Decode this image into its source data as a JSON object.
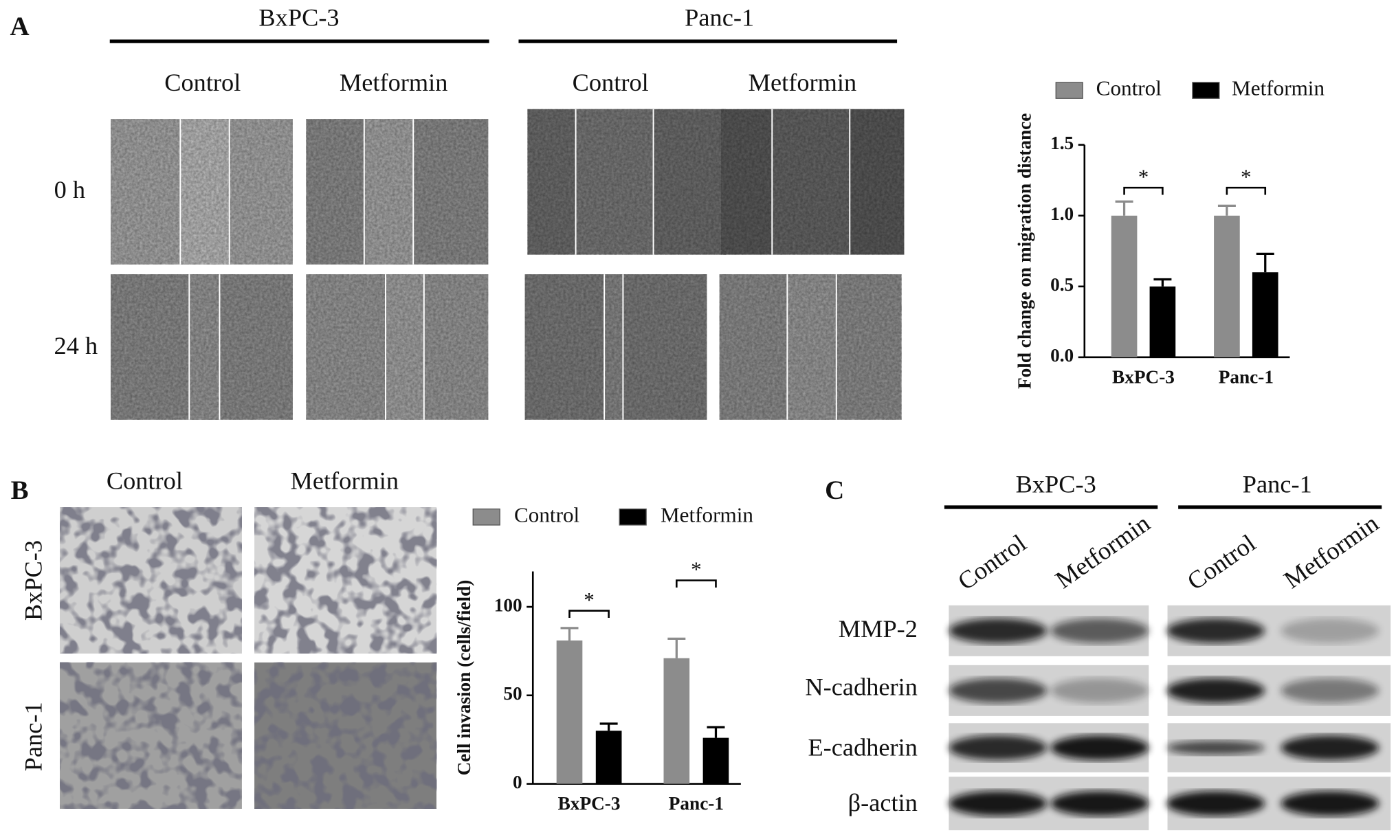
{
  "panels": {
    "A": {
      "label": "A",
      "groups": [
        "BxPC-3",
        "Panc-1"
      ],
      "conditions": [
        "Control",
        "Metformin",
        "Control",
        "Metformin"
      ],
      "times": [
        "0 h",
        "24 h"
      ]
    },
    "B": {
      "label": "B",
      "conditions": [
        "Control",
        "Metformin"
      ],
      "rows": [
        "BxPC-3",
        "Panc-1"
      ]
    },
    "C": {
      "label": "C",
      "groups": [
        "BxPC-3",
        "Panc-1"
      ],
      "lanes": [
        "Control",
        "Metformin",
        "Control",
        "Metformin"
      ],
      "proteins": [
        "MMP-2",
        "N-cadherin",
        "E-cadherin",
        "β-actin"
      ]
    }
  },
  "chart_data": [
    {
      "type": "bar",
      "y_label": "Fold change on migration distance",
      "categories": [
        "BxPC-3",
        "Panc-1"
      ],
      "series": [
        {
          "name": "Control",
          "color": "#8c8c8c",
          "values": [
            1.0,
            1.0
          ],
          "errors": [
            0.1,
            0.07
          ]
        },
        {
          "name": "Metformin",
          "color": "#000000",
          "values": [
            0.5,
            0.6
          ],
          "errors": [
            0.05,
            0.13
          ]
        }
      ],
      "ylim": [
        0,
        1.5
      ],
      "yticks": [
        {
          "value": 0,
          "label": "0.0"
        },
        {
          "value": 0.5,
          "label": "0.5"
        },
        {
          "value": 1,
          "label": "1.0"
        },
        {
          "value": 1.5,
          "label": "1.5"
        }
      ],
      "annotations": [
        "*",
        "*"
      ]
    },
    {
      "type": "bar",
      "y_label": "Cell invasion (cells/field)",
      "categories": [
        "BxPC-3",
        "Panc-1"
      ],
      "series": [
        {
          "name": "Control",
          "color": "#8c8c8c",
          "values": [
            81,
            71
          ],
          "errors": [
            7,
            11
          ]
        },
        {
          "name": "Metformin",
          "color": "#000000",
          "values": [
            30,
            26
          ],
          "errors": [
            4,
            6
          ]
        }
      ],
      "ylim": [
        0,
        120
      ],
      "yticks": [
        0,
        50,
        100
      ],
      "annotations": [
        "*",
        "*"
      ]
    }
  ]
}
